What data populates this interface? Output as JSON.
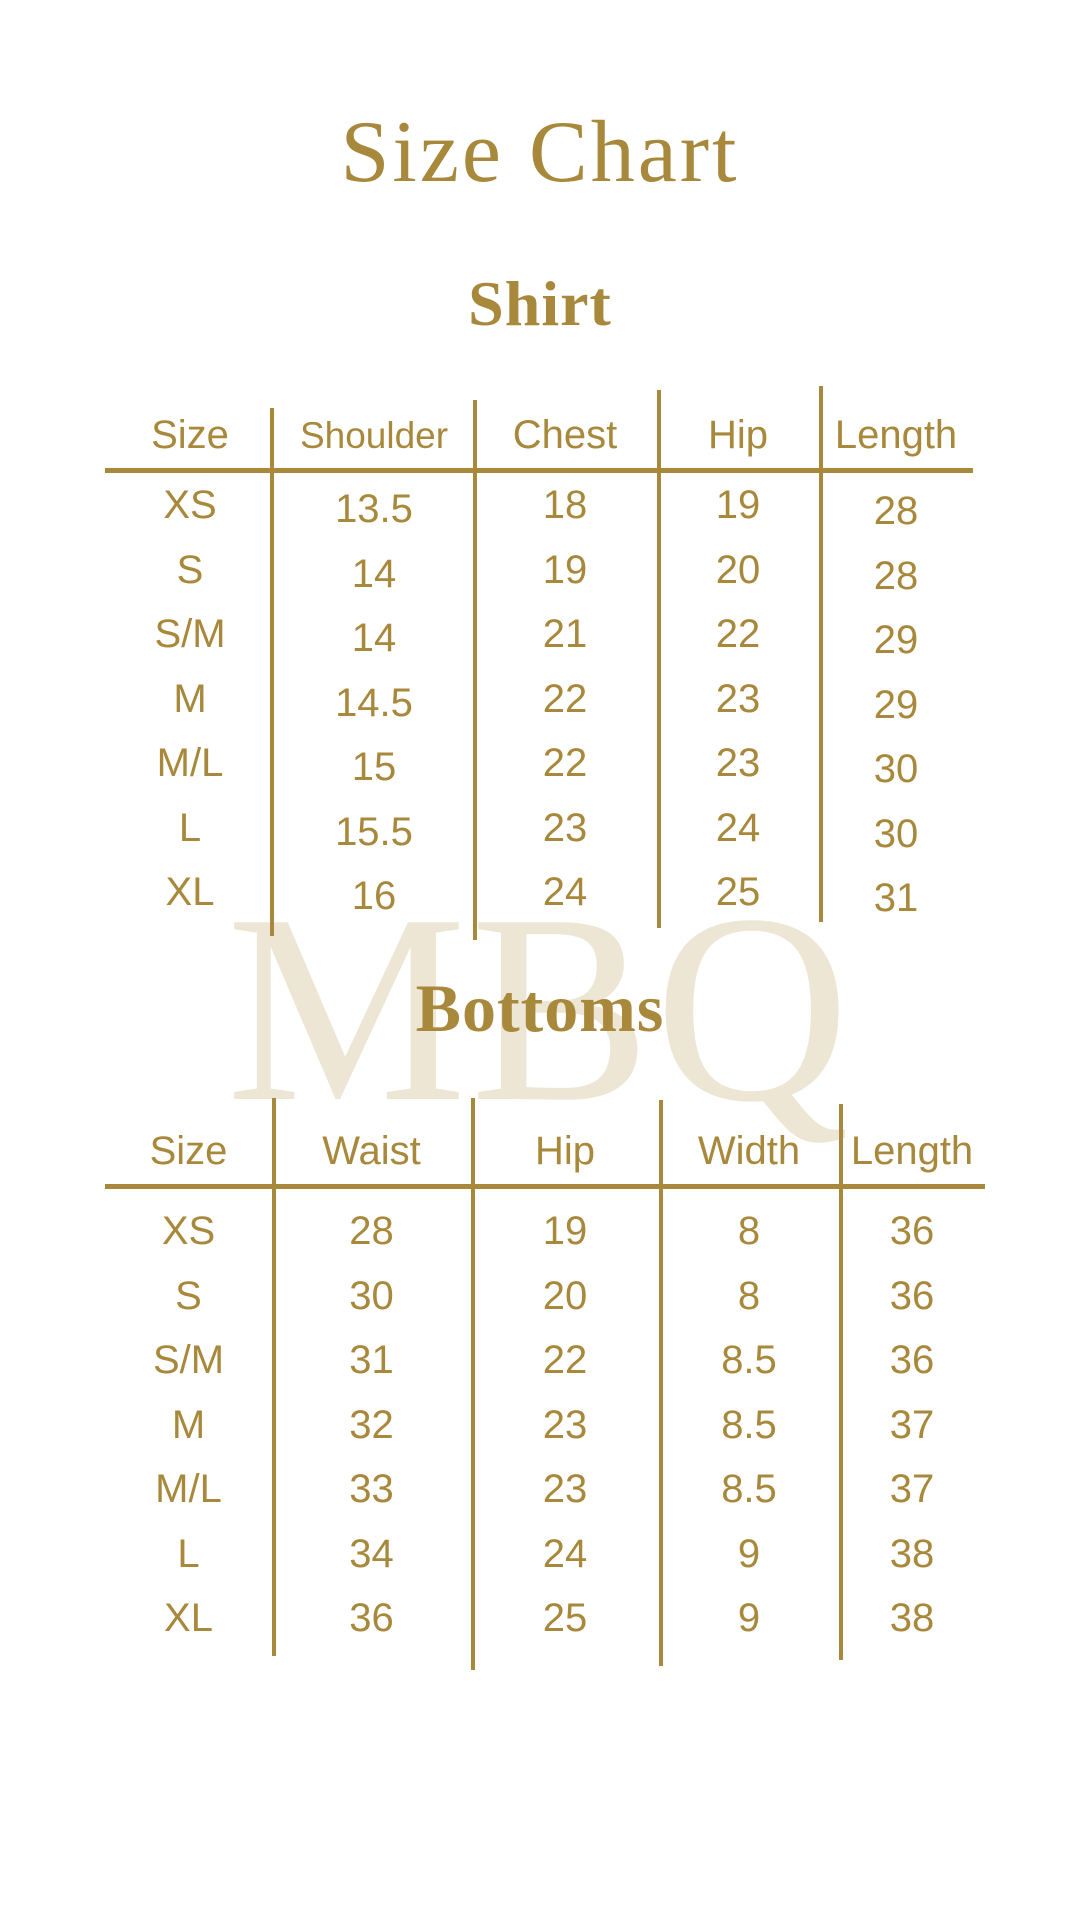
{
  "page": {
    "title": "Size Chart"
  },
  "watermark": {
    "text": "MBQ"
  },
  "colors": {
    "gold": "#A8883B",
    "watermark_beige": "#EDE6D4",
    "background": "#FFFFFF"
  },
  "shirt": {
    "title": "Shirt",
    "headers": [
      "Size",
      "Shoulder",
      "Chest",
      "Hip",
      "Length"
    ],
    "rows": [
      [
        "XS",
        "13.5",
        "18",
        "19",
        "28"
      ],
      [
        "S",
        "14",
        "19",
        "20",
        "28"
      ],
      [
        "S/M",
        "14",
        "21",
        "22",
        "29"
      ],
      [
        "M",
        "14.5",
        "22",
        "23",
        "29"
      ],
      [
        "M/L",
        "15",
        "22",
        "23",
        "30"
      ],
      [
        "L",
        "15.5",
        "23",
        "24",
        "30"
      ],
      [
        "XL",
        "16",
        "24",
        "25",
        "31"
      ]
    ]
  },
  "bottoms": {
    "title": "Bottoms",
    "headers": [
      "Size",
      "Waist",
      "Hip",
      "Width",
      "Length"
    ],
    "rows": [
      [
        "XS",
        "28",
        "19",
        "8",
        "36"
      ],
      [
        "S",
        "30",
        "20",
        "8",
        "36"
      ],
      [
        "S/M",
        "31",
        "22",
        "8.5",
        "36"
      ],
      [
        "M",
        "32",
        "23",
        "8.5",
        "37"
      ],
      [
        "M/L",
        "33",
        "23",
        "8.5",
        "37"
      ],
      [
        "L",
        "34",
        "24",
        "9",
        "38"
      ],
      [
        "XL",
        "36",
        "25",
        "9",
        "38"
      ]
    ]
  }
}
